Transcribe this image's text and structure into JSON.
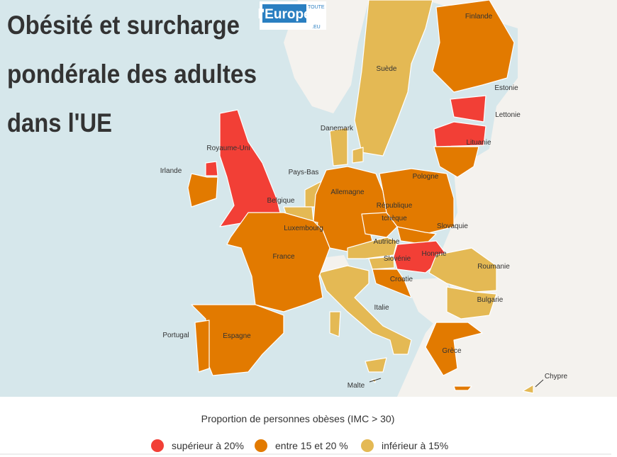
{
  "header": {
    "title_lines": [
      "Obésité et surcharge",
      "pondérale des adultes",
      "dans l'UE"
    ],
    "logo": {
      "top": "TOUTE",
      "main": "l'Europe",
      "suffix": ".EU"
    }
  },
  "countries": [
    "Finlande",
    "Suède",
    "Estonie",
    "Lettonie",
    "Lituanie",
    "Danemark",
    "Royaume-Uni",
    "Irlande",
    "Pays-Bas",
    "Allemagne",
    "Pologne",
    [
      "République",
      "tchèque"
    ],
    "Belgique",
    "Luxembourg",
    "Slovaquie",
    "Autriche",
    "Hongrie",
    "Slovénie",
    "France",
    "Roumanie",
    "Croatie",
    "Italie",
    "Bulgarie",
    "Portugal",
    "Espagne",
    "Grèce",
    "Chypre",
    "Malte"
  ],
  "legend": {
    "title": "Proportion de personnes obèses (IMC > 30)",
    "items": [
      {
        "label": "supérieur à 20%",
        "color": "#f23f36"
      },
      {
        "label": "entre 15 et 20 %",
        "color": "#e27a00"
      },
      {
        "label": "inférieur à 15%",
        "color": "#e4b954"
      }
    ]
  }
}
